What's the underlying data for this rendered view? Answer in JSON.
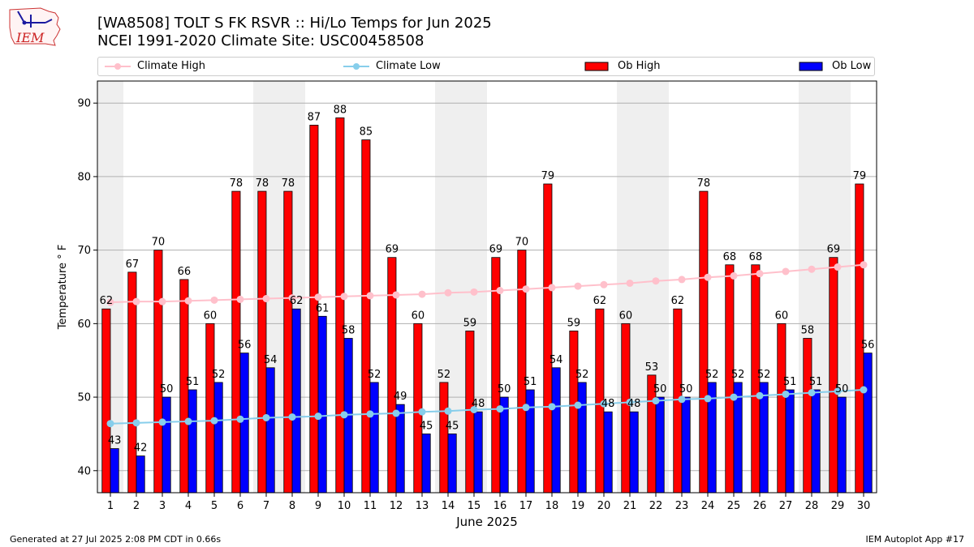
{
  "header": {
    "title_line1": "[WA8508] TOLT S FK RSVR :: Hi/Lo Temps for Jun 2025",
    "title_line2": "NCEI 1991-2020 Climate Site: USC00458508",
    "logo_text": "IEM"
  },
  "footer": {
    "left": "Generated at 27 Jul 2025 2:08 PM CDT in 0.66s",
    "right": "IEM Autoplot App #17"
  },
  "colors": {
    "ob_high": "#ff0000",
    "ob_low": "#0000ff",
    "climate_high": "#ffc0cb",
    "climate_low": "#87ceeb",
    "weekend_band": "#efefef",
    "grid": "#b0b0b0"
  },
  "chart_data": {
    "type": "bar",
    "title": "[WA8508] TOLT S FK RSVR :: Hi/Lo Temps for Jun 2025",
    "subtitle": "NCEI 1991-2020 Climate Site: USC00458508",
    "xlabel": "June 2025",
    "ylabel": "Temperature ° F",
    "ylim": [
      37,
      93
    ],
    "yticks": [
      40,
      50,
      60,
      70,
      80,
      90
    ],
    "grid": true,
    "legend": "top",
    "categories": [
      "1",
      "2",
      "3",
      "4",
      "5",
      "6",
      "7",
      "8",
      "9",
      "10",
      "11",
      "12",
      "13",
      "14",
      "15",
      "16",
      "17",
      "18",
      "19",
      "20",
      "21",
      "22",
      "23",
      "24",
      "25",
      "26",
      "27",
      "28",
      "29",
      "30"
    ],
    "shaded_days": [
      1,
      7,
      8,
      14,
      15,
      21,
      22,
      28,
      29
    ],
    "series": [
      {
        "name": "Ob High",
        "kind": "bar",
        "color": "#ff0000",
        "values": [
          62,
          67,
          70,
          66,
          60,
          78,
          78,
          78,
          87,
          88,
          85,
          69,
          60,
          52,
          59,
          69,
          70,
          79,
          59,
          62,
          60,
          53,
          62,
          78,
          68,
          68,
          60,
          58,
          69,
          79
        ]
      },
      {
        "name": "Ob Low",
        "kind": "bar",
        "color": "#0000ff",
        "values": [
          43,
          42,
          50,
          51,
          52,
          56,
          54,
          62,
          61,
          58,
          52,
          49,
          45,
          45,
          48,
          50,
          51,
          54,
          52,
          48,
          48,
          50,
          50,
          52,
          52,
          52,
          51,
          51,
          50,
          56
        ]
      },
      {
        "name": "Climate High",
        "kind": "line",
        "color": "#ffc0cb",
        "values": [
          62.9,
          63.0,
          63.0,
          63.1,
          63.2,
          63.3,
          63.4,
          63.5,
          63.6,
          63.7,
          63.8,
          63.9,
          64.0,
          64.2,
          64.3,
          64.5,
          64.7,
          64.9,
          65.1,
          65.3,
          65.5,
          65.8,
          66.0,
          66.3,
          66.5,
          66.8,
          67.1,
          67.4,
          67.7,
          68.0
        ]
      },
      {
        "name": "Climate Low",
        "kind": "line",
        "color": "#87ceeb",
        "values": [
          46.4,
          46.5,
          46.6,
          46.7,
          46.8,
          47.0,
          47.2,
          47.3,
          47.4,
          47.6,
          47.7,
          47.8,
          48.0,
          48.1,
          48.3,
          48.4,
          48.6,
          48.7,
          48.9,
          49.1,
          49.3,
          49.5,
          49.7,
          49.8,
          50.0,
          50.2,
          50.4,
          50.6,
          50.8,
          51.0
        ]
      }
    ]
  }
}
